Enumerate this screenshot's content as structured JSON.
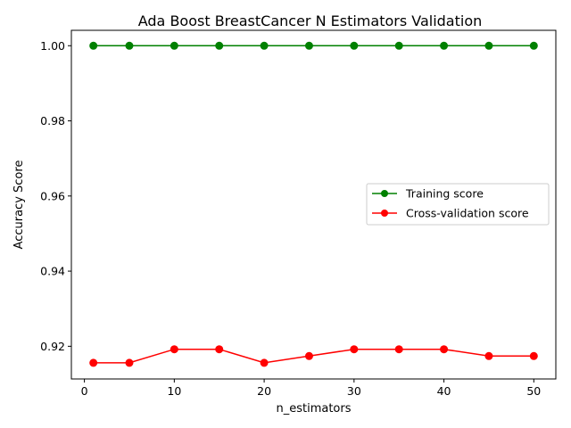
{
  "chart_data": {
    "type": "line",
    "title": "Ada Boost BreastCancer N Estimators Validation",
    "xlabel": "n_estimators",
    "ylabel": "Accuracy Score",
    "x": [
      1,
      5,
      10,
      15,
      20,
      25,
      30,
      35,
      40,
      45,
      50
    ],
    "xlim": [
      -1.45,
      52.45
    ],
    "ylim": [
      0.9113,
      1.0041
    ],
    "xticks": [
      0,
      10,
      20,
      30,
      40,
      50
    ],
    "xtick_labels": [
      "0",
      "10",
      "20",
      "30",
      "40",
      "50"
    ],
    "yticks": [
      0.92,
      0.94,
      0.96,
      0.98,
      1.0
    ],
    "ytick_labels": [
      "0.92",
      "0.94",
      "0.96",
      "0.98",
      "1.00"
    ],
    "grid": false,
    "legend_position": "center-right",
    "series": [
      {
        "name": "Training score",
        "color": "#008000",
        "values": [
          1.0,
          1.0,
          1.0,
          1.0,
          1.0,
          1.0,
          1.0,
          1.0,
          1.0,
          1.0,
          1.0
        ]
      },
      {
        "name": "Cross-validation score",
        "color": "#ff0000",
        "values": [
          0.9156,
          0.9156,
          0.9192,
          0.9192,
          0.9156,
          0.9174,
          0.9192,
          0.9192,
          0.9192,
          0.9174,
          0.9174
        ]
      }
    ]
  }
}
